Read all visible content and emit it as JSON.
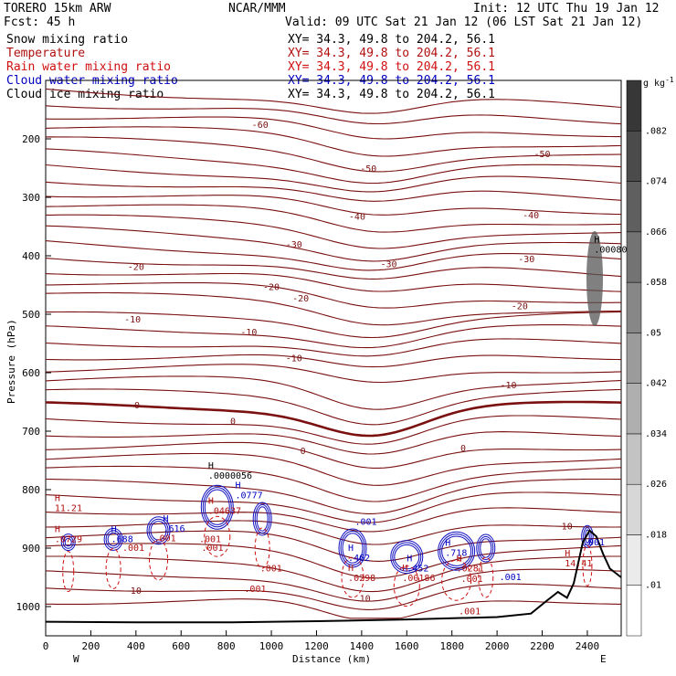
{
  "header": {
    "model": "TORERO  15km ARW",
    "center": "NCAR/MMM",
    "init": "Init: 12 UTC Thu 19 Jan 12",
    "fcst": "Fcst:   45 h",
    "valid": "Valid: 09 UTC Sat 21 Jan 12 (06 LST Sat 21 Jan 12)"
  },
  "legend": [
    {
      "label": "Snow mixing ratio",
      "xy": "XY=  34.3, 49.8 to 204.2, 56.1",
      "color": "#000000"
    },
    {
      "label": "Temperature",
      "xy": "XY=  34.3, 49.8 to 204.2, 56.1",
      "color": "#b01010"
    },
    {
      "label": "Rain water mixing ratio",
      "xy": "XY=  34.3, 49.8 to 204.2, 56.1",
      "color": "#d01010"
    },
    {
      "label": "Cloud water mixing ratio",
      "xy": "XY=  34.3, 49.8 to 204.2, 56.1",
      "color": "#0000c0"
    },
    {
      "label": "Cloud ice mixing ratio",
      "xy": "XY=  34.3, 49.8 to 204.2, 56.1",
      "color": "#000000"
    }
  ],
  "chart_data": {
    "type": "line",
    "xlabel": "Distance (km)",
    "ylabel": "Pressure (hPa)",
    "xlim": [
      0,
      2550
    ],
    "ylim": [
      1050,
      100
    ],
    "x_ticks": [
      0,
      200,
      400,
      600,
      800,
      1000,
      1200,
      1400,
      1600,
      1800,
      2000,
      2200,
      2400
    ],
    "y_ticks": [
      200,
      300,
      400,
      500,
      600,
      700,
      800,
      900,
      1000
    ],
    "x_end_labels": {
      "left": "W",
      "right": "E"
    },
    "colorbar": {
      "unit": "g kg",
      "unit_exp": "-1",
      "ticks": [
        ".01",
        ".018",
        ".026",
        ".034",
        ".042",
        ".05",
        ".058",
        ".066",
        ".074",
        ".082"
      ]
    },
    "temperature_contour_labels": [
      {
        "text": "-60",
        "x": 950,
        "p": 175
      },
      {
        "text": "-50",
        "x": 1430,
        "p": 250
      },
      {
        "text": "-50",
        "x": 2200,
        "p": 225
      },
      {
        "text": "-40",
        "x": 1380,
        "p": 332
      },
      {
        "text": "-40",
        "x": 2150,
        "p": 330
      },
      {
        "text": "-30",
        "x": 1100,
        "p": 380
      },
      {
        "text": "-30",
        "x": 1520,
        "p": 413
      },
      {
        "text": "-30",
        "x": 2130,
        "p": 405
      },
      {
        "text": "-20",
        "x": 400,
        "p": 418
      },
      {
        "text": "-20",
        "x": 1000,
        "p": 452
      },
      {
        "text": "-20",
        "x": 1130,
        "p": 472
      },
      {
        "text": "-20",
        "x": 2100,
        "p": 485
      },
      {
        "text": "-10",
        "x": 385,
        "p": 508
      },
      {
        "text": "-10",
        "x": 900,
        "p": 530
      },
      {
        "text": "-10",
        "x": 1100,
        "p": 574
      },
      {
        "text": "-10",
        "x": 2050,
        "p": 620
      },
      {
        "text": "0",
        "x": 405,
        "p": 655
      },
      {
        "text": "0",
        "x": 830,
        "p": 682
      },
      {
        "text": "0",
        "x": 1140,
        "p": 733
      },
      {
        "text": "0",
        "x": 1850,
        "p": 728
      },
      {
        "text": "10",
        "x": 2310,
        "p": 862
      },
      {
        "text": "10",
        "x": 400,
        "p": 972
      },
      {
        "text": "10",
        "x": 1415,
        "p": 985
      }
    ],
    "extrema_labels": [
      {
        "mark": "H",
        "value": "11.21",
        "x": 40,
        "p": 835,
        "color": "#b01010"
      },
      {
        "mark": "H",
        "value": "14.41",
        "x": 2300,
        "p": 930,
        "color": "#b01010"
      },
      {
        "mark": "H",
        "value": ".0008019",
        "x": 2430,
        "p": 393,
        "color": "#000000"
      },
      {
        "mark": "H",
        "value": ".0000056",
        "x": 720,
        "p": 780,
        "color": "#000000"
      },
      {
        "mark": "H",
        "value": ".0777",
        "x": 840,
        "p": 813,
        "color": "#0000c0"
      },
      {
        "mark": "H",
        "value": ".616",
        "x": 520,
        "p": 870,
        "color": "#0000c0"
      },
      {
        "mark": "H",
        "value": ".04637",
        "x": 720,
        "p": 840,
        "color": "#b01010"
      },
      {
        "mark": "H",
        "value": ".0729",
        "x": 40,
        "p": 888,
        "color": "#b01010"
      },
      {
        "mark": "H",
        "value": ".688",
        "x": 290,
        "p": 888,
        "color": "#0000c0"
      },
      {
        "mark": "H",
        "value": ".462",
        "x": 1340,
        "p": 920,
        "color": "#0000c0"
      },
      {
        "mark": "H",
        "value": ".452",
        "x": 1600,
        "p": 938,
        "color": "#0000c0"
      },
      {
        "mark": "H",
        "value": ".718",
        "x": 1770,
        "p": 912,
        "color": "#0000c0"
      },
      {
        "mark": "H",
        "value": ".0298",
        "x": 1340,
        "p": 955,
        "color": "#b01010"
      },
      {
        "mark": "H",
        "value": ".00186",
        "x": 1580,
        "p": 955,
        "color": "#b01010"
      },
      {
        "mark": "H",
        "value": ".0281",
        "x": 1820,
        "p": 938,
        "color": "#b01010"
      }
    ],
    "cloud_value_labels": [
      {
        "value": ".001",
        "x": 340,
        "p": 905,
        "color": "#b01010"
      },
      {
        "value": ".001",
        "x": 480,
        "p": 888,
        "color": "#b01010"
      },
      {
        "value": ".001",
        "x": 680,
        "p": 890,
        "color": "#b01010"
      },
      {
        "value": ".001",
        "x": 690,
        "p": 905,
        "color": "#b01010"
      },
      {
        "value": ".001",
        "x": 950,
        "p": 940,
        "color": "#b01010"
      },
      {
        "value": ".001",
        "x": 880,
        "p": 975,
        "color": "#b01010"
      },
      {
        "value": ".001",
        "x": 1370,
        "p": 860,
        "color": "#0000c0"
      },
      {
        "value": ".001",
        "x": 1840,
        "p": 958,
        "color": "#b01010"
      },
      {
        "value": ".001",
        "x": 2010,
        "p": 955,
        "color": "#0000c0"
      },
      {
        "value": ".001",
        "x": 2380,
        "p": 895,
        "color": "#0000c0"
      },
      {
        "value": ".001",
        "x": 1830,
        "p": 1013,
        "color": "#b01010"
      }
    ],
    "terrain": [
      {
        "x": 0,
        "p": 1026
      },
      {
        "x": 400,
        "p": 1027
      },
      {
        "x": 800,
        "p": 1027
      },
      {
        "x": 1200,
        "p": 1025
      },
      {
        "x": 1600,
        "p": 1022
      },
      {
        "x": 2000,
        "p": 1018
      },
      {
        "x": 2150,
        "p": 1012
      },
      {
        "x": 2220,
        "p": 990
      },
      {
        "x": 2270,
        "p": 975
      },
      {
        "x": 2310,
        "p": 985
      },
      {
        "x": 2340,
        "p": 960
      },
      {
        "x": 2380,
        "p": 890
      },
      {
        "x": 2410,
        "p": 870
      },
      {
        "x": 2440,
        "p": 880
      },
      {
        "x": 2470,
        "p": 910
      },
      {
        "x": 2500,
        "p": 935
      },
      {
        "x": 2550,
        "p": 950
      }
    ]
  }
}
